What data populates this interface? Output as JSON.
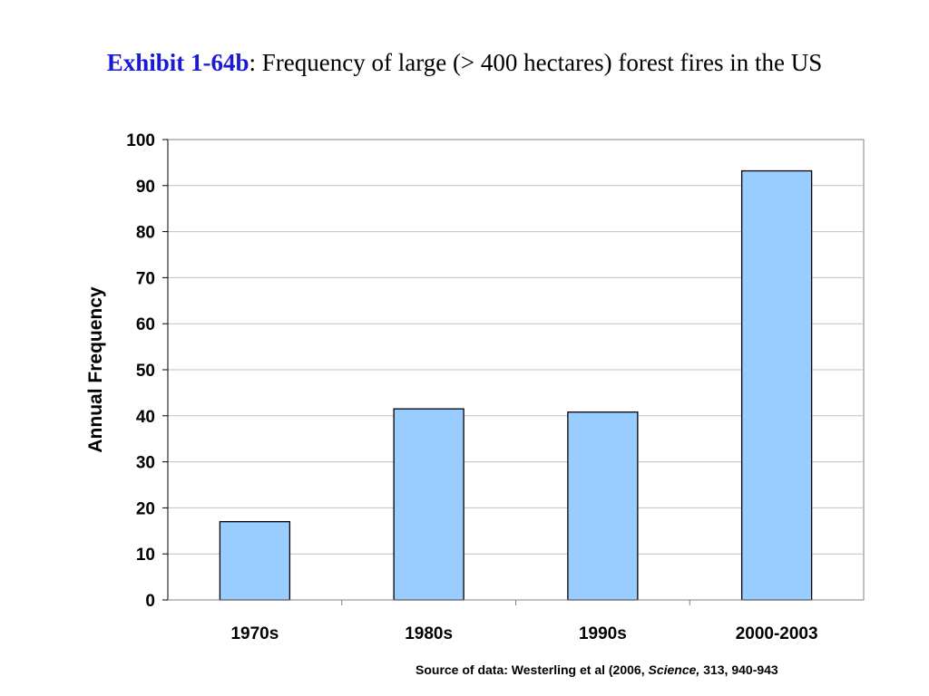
{
  "header": {
    "exhibit_label": "Exhibit 1-64b",
    "separator": ": ",
    "title_text": "Frequency of large (> 400 hectares) forest fires in the US"
  },
  "source": {
    "prefix": "Source of data: Westerling et al (2006, ",
    "journal": "Science,",
    "suffix": " 313, 940-943"
  },
  "chart_data": {
    "type": "bar",
    "categories": [
      "1970s",
      "1980s",
      "1990s",
      "2000-2003"
    ],
    "values": [
      17,
      41.5,
      40.8,
      93.2
    ],
    "title": "Frequency of large (> 400 hectares) forest fires in the US",
    "xlabel": "",
    "ylabel": "Annual Frequency",
    "ylim": [
      0,
      100
    ],
    "yticks": [
      0,
      10,
      20,
      30,
      40,
      50,
      60,
      70,
      80,
      90,
      100
    ],
    "grid": true,
    "legend": "none",
    "colors": {
      "bar_fill": "#99ccff",
      "bar_stroke": "#000000",
      "grid": "#c0c0c0",
      "axis": "#808080"
    }
  }
}
